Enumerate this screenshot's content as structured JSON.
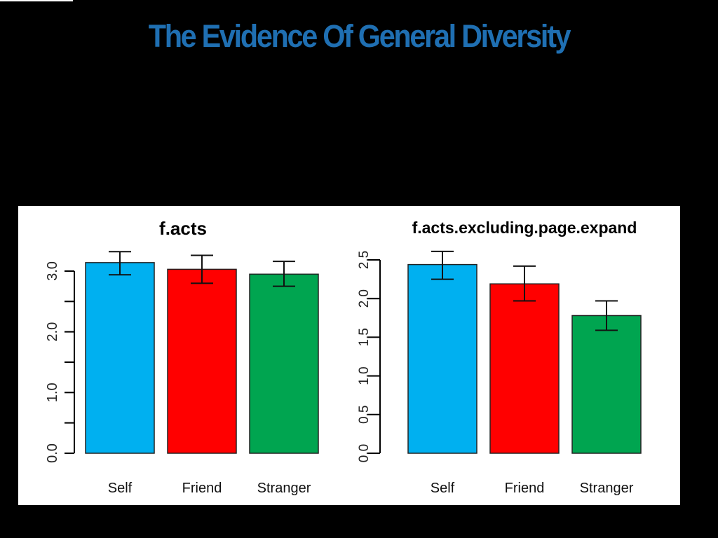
{
  "slide": {
    "title": "The Evidence Of General Diversity",
    "title_color": "#1f6fb2",
    "background": "#000000"
  },
  "chart_data": [
    {
      "type": "bar",
      "title": "f.acts",
      "categories": [
        "Self",
        "Friend",
        "Stranger"
      ],
      "values": [
        3.14,
        3.03,
        2.95
      ],
      "error_bars": {
        "lower": [
          2.94,
          2.8,
          2.75
        ],
        "upper": [
          3.32,
          3.26,
          3.16
        ]
      },
      "colors": [
        "#00b0f0",
        "#ff0000",
        "#00a550"
      ],
      "xlabel": "",
      "ylabel": "",
      "ylim": [
        0,
        3.0
      ],
      "yticks": [
        0.0,
        0.5,
        1.0,
        1.5,
        2.0,
        2.5,
        3.0
      ],
      "ytick_labels": [
        "0.0",
        "",
        "1.0",
        "",
        "2.0",
        "",
        "3.0"
      ],
      "grid": false,
      "legend": "none"
    },
    {
      "type": "bar",
      "title": "f.acts.excluding.page.expand",
      "categories": [
        "Self",
        "Friend",
        "Stranger"
      ],
      "values": [
        2.44,
        2.19,
        1.78
      ],
      "error_bars": {
        "lower": [
          2.25,
          1.97,
          1.59
        ],
        "upper": [
          2.61,
          2.42,
          1.97
        ]
      },
      "colors": [
        "#00b0f0",
        "#ff0000",
        "#00a550"
      ],
      "xlabel": "",
      "ylabel": "",
      "ylim": [
        0,
        2.5
      ],
      "yticks": [
        0.0,
        0.5,
        1.0,
        1.5,
        2.0,
        2.5
      ],
      "ytick_labels": [
        "0.0",
        "0.5",
        "1.0",
        "1.5",
        "2.0",
        "2.5"
      ],
      "grid": false,
      "legend": "none"
    }
  ]
}
